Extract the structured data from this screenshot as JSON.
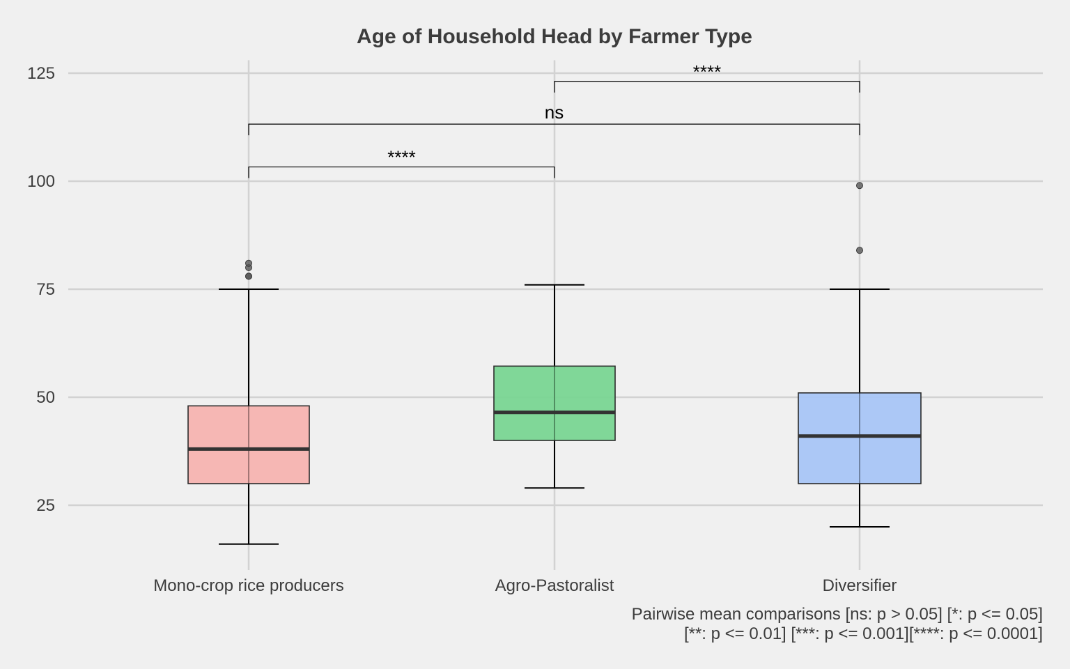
{
  "chart_data": {
    "type": "box",
    "title": "Age of Household Head by Farmer Type",
    "xlabel": "",
    "ylabel": "",
    "ylim": [
      10,
      128
    ],
    "yticks": [
      "25",
      "50",
      "75",
      "100",
      "125"
    ],
    "grid": true,
    "legend": "none",
    "categories": [
      "Mono-crop rice producers",
      "Agro-Pastoralist",
      "Diversifier"
    ],
    "colors": [
      "#f5b3b0",
      "#79d592",
      "#a8c5f6"
    ],
    "boxes": [
      {
        "category": "Mono-crop rice producers",
        "whisker_low": 16,
        "q1": 30,
        "median": 38,
        "q3": 48,
        "whisker_high": 75,
        "outliers": [
          78,
          78,
          80,
          81
        ]
      },
      {
        "category": "Agro-Pastoralist",
        "whisker_low": 29,
        "q1": 40,
        "median": 46.5,
        "q3": 57.2,
        "whisker_high": 76,
        "outliers": []
      },
      {
        "category": "Diversifier",
        "whisker_low": 20,
        "q1": 30,
        "median": 41,
        "q3": 51,
        "whisker_high": 75,
        "outliers": [
          84,
          99
        ]
      }
    ],
    "comparisons": [
      {
        "from": 0,
        "to": 1,
        "y": 103.3,
        "label": "****"
      },
      {
        "from": 0,
        "to": 2,
        "y": 113.2,
        "label": "ns"
      },
      {
        "from": 1,
        "to": 2,
        "y": 123.1,
        "label": "****"
      }
    ],
    "caption": [
      "Pairwise mean comparisons [ns: p > 0.05] [*: p <= 0.05]",
      "[**: p <= 0.01] [***: p <= 0.001][****: p <= 0.0001]"
    ]
  }
}
